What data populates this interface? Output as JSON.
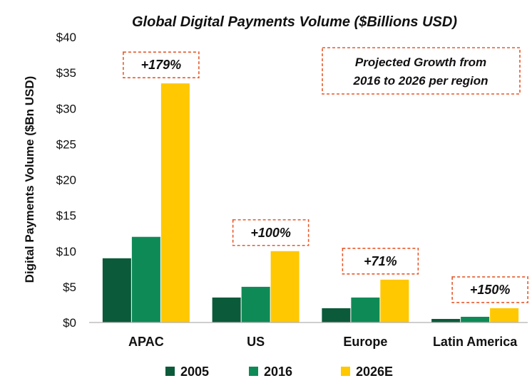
{
  "chart_data": {
    "type": "bar",
    "title": "Global Digital Payments Volume ($Billions USD)",
    "ylabel": "Digital Payments Volume ($Bn USD)",
    "xlabel": "",
    "ylim": [
      0,
      40
    ],
    "yticks": [
      "$0",
      "$5",
      "$10",
      "$15",
      "$20",
      "$25",
      "$30",
      "$35",
      "$40"
    ],
    "categories": [
      "APAC",
      "US",
      "Europe",
      "Latin America"
    ],
    "series": [
      {
        "name": "2005",
        "color": "#0b5a3a",
        "values": [
          9,
          3.5,
          2,
          0.5
        ]
      },
      {
        "name": "2016",
        "color": "#0e8a57",
        "values": [
          12,
          5,
          3.5,
          0.8
        ]
      },
      {
        "name": "2026E",
        "color": "#ffc800",
        "values": [
          33.5,
          10,
          6,
          2
        ]
      }
    ],
    "growth_labels": [
      "+179%",
      "+100%",
      "+71%",
      "+150%"
    ],
    "annotation": {
      "line1": "Projected Growth from",
      "line2": "2016 to 2026 per region"
    },
    "grid": false,
    "legend_position": "bottom"
  }
}
